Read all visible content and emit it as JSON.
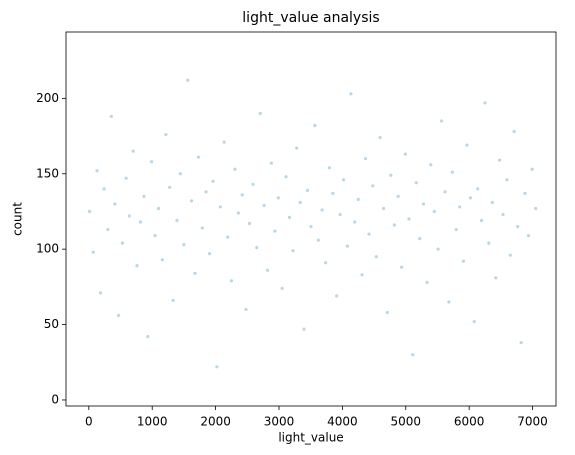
{
  "chart_data": {
    "type": "scatter",
    "title": "light_value analysis",
    "x_label": "light_value",
    "y_label": "count",
    "color": "#1f77b4",
    "xlim": [
      -360,
      7370
    ],
    "ylim": [
      -4,
      244
    ],
    "xticks": [
      0,
      1000,
      2000,
      3000,
      4000,
      5000,
      6000,
      7000
    ],
    "yticks": [
      0,
      50,
      100,
      150,
      200
    ],
    "x": [
      12,
      70,
      130,
      185,
      240,
      300,
      355,
      410,
      470,
      530,
      588,
      640,
      700,
      760,
      815,
      870,
      930,
      990,
      1045,
      1100,
      1160,
      1215,
      1275,
      1330,
      1390,
      1445,
      1500,
      1560,
      1620,
      1675,
      1730,
      1790,
      1850,
      1905,
      1960,
      2020,
      2075,
      2135,
      2190,
      2250,
      2305,
      2360,
      2420,
      2480,
      2535,
      2590,
      2650,
      2705,
      2765,
      2820,
      2880,
      2935,
      2990,
      3050,
      3110,
      3165,
      3220,
      3280,
      3335,
      3395,
      3450,
      3505,
      3565,
      3620,
      3680,
      3735,
      3795,
      3850,
      3910,
      3965,
      4020,
      4080,
      4135,
      4195,
      4250,
      4310,
      4365,
      4420,
      4480,
      4535,
      4595,
      4650,
      4710,
      4765,
      4820,
      4880,
      4935,
      4995,
      5050,
      5110,
      5165,
      5220,
      5280,
      5335,
      5395,
      5450,
      5510,
      5565,
      5620,
      5680,
      5735,
      5795,
      5850,
      5910,
      5965,
      6020,
      6080,
      6135,
      6195,
      6250,
      6310,
      6365,
      6420,
      6480,
      6535,
      6595,
      6650,
      6710,
      6765,
      6820,
      6880,
      6935,
      6995,
      7050
    ],
    "values": [
      125,
      98,
      152,
      71,
      140,
      113,
      188,
      130,
      56,
      104,
      147,
      122,
      165,
      89,
      118,
      135,
      42,
      158,
      109,
      127,
      93,
      176,
      141,
      66,
      119,
      150,
      103,
      212,
      132,
      84,
      161,
      114,
      138,
      97,
      145,
      22,
      128,
      171,
      108,
      79,
      153,
      124,
      136,
      60,
      117,
      143,
      101,
      190,
      129,
      86,
      157,
      112,
      134,
      74,
      148,
      121,
      99,
      167,
      131,
      47,
      139,
      115,
      182,
      106,
      126,
      91,
      154,
      137,
      69,
      123,
      146,
      102,
      203,
      118,
      133,
      83,
      160,
      110,
      142,
      95,
      174,
      127,
      58,
      149,
      116,
      135,
      88,
      163,
      120,
      30,
      144,
      107,
      130,
      78,
      156,
      125,
      100,
      185,
      138,
      65,
      151,
      113,
      128,
      92,
      169,
      134,
      52,
      140,
      119,
      197,
      104,
      131,
      81,
      159,
      123,
      146,
      96,
      178,
      115,
      38,
      137,
      109,
      153,
      127
    ]
  }
}
